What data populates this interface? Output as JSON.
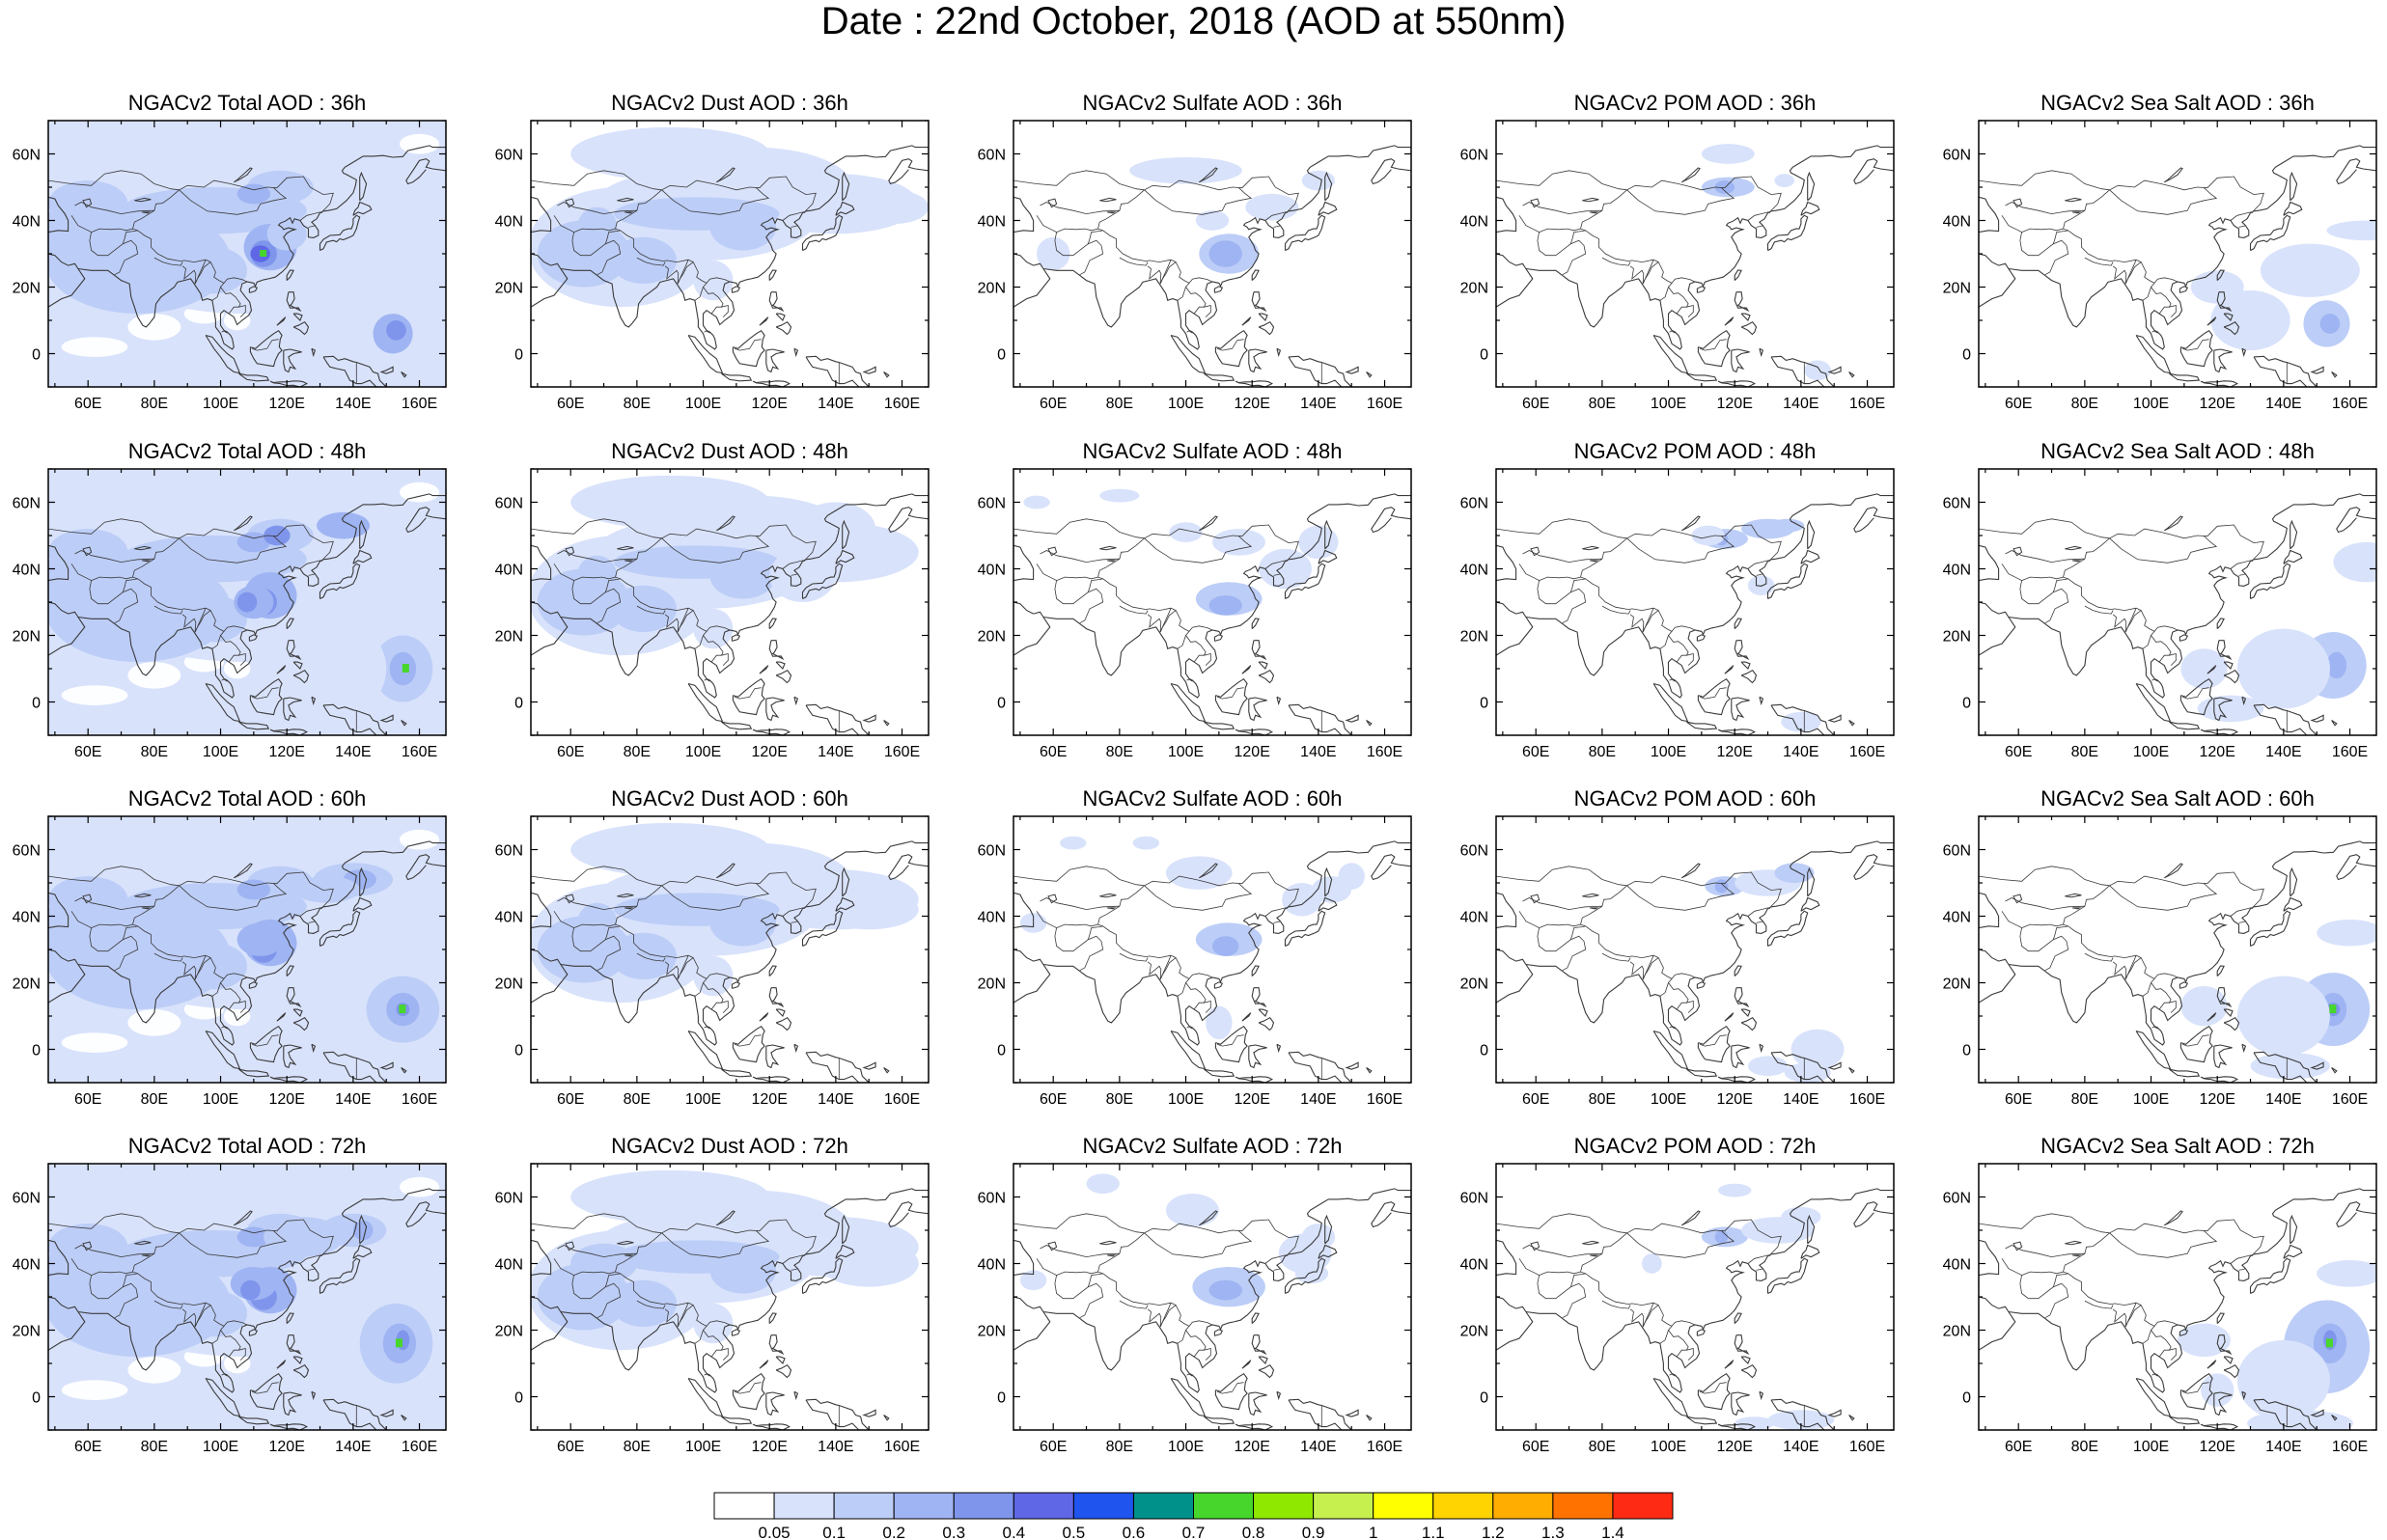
{
  "title": "Date : 22nd October, 2018 (AOD at 550nm)",
  "colors": {
    "land_outline": "#3a3a3a",
    "frame": "#000000",
    "colorbar": [
      "#ffffff",
      "#d8e2fb",
      "#bccdf7",
      "#9fb4f2",
      "#7f95ec",
      "#6067e6",
      "#1f55ee",
      "#00918a",
      "#47d62c",
      "#8fe800",
      "#c6f04e",
      "#ffff00",
      "#ffd400",
      "#ffad00",
      "#ff7200",
      "#ff2a13"
    ]
  },
  "panels": [
    [
      "NGACv2 Total AOD : 36h",
      "NGACv2 Dust AOD : 36h",
      "NGACv2 Sulfate AOD : 36h",
      "NGACv2 POM AOD : 36h",
      "NGACv2 Sea Salt AOD : 36h"
    ],
    [
      "NGACv2 Total AOD : 48h",
      "NGACv2 Dust AOD : 48h",
      "NGACv2 Sulfate AOD : 48h",
      "NGACv2 POM AOD : 48h",
      "NGACv2 Sea Salt AOD : 48h"
    ],
    [
      "NGACv2 Total AOD : 60h",
      "NGACv2 Dust AOD : 60h",
      "NGACv2 Sulfate AOD : 60h",
      "NGACv2 POM AOD : 60h",
      "NGACv2 Sea Salt AOD : 60h"
    ],
    [
      "NGACv2 Total AOD : 72h",
      "NGACv2 Dust AOD : 72h",
      "NGACv2 Sulfate AOD : 72h",
      "NGACv2 POM AOD : 72h",
      "NGACv2 Sea Salt  AOD : 72h"
    ]
  ],
  "species": [
    "total",
    "dust",
    "sulfate",
    "pom",
    "seasalt"
  ],
  "hours": [
    "36h",
    "48h",
    "60h",
    "72h"
  ],
  "map": {
    "lon_range": [
      48,
      168
    ],
    "lat_range": [
      -10,
      70
    ],
    "lon_ticks": [
      "60E",
      "80E",
      "100E",
      "120E",
      "140E",
      "160E"
    ],
    "lat_ticks": [
      "60N",
      "40N",
      "20N",
      "0"
    ]
  },
  "colorbar_labels": [
    "0.05",
    "0.1",
    "0.2",
    "0.3",
    "0.4",
    "0.5",
    "0.6",
    "0.7",
    "0.8",
    "0.9",
    "1",
    "1.1",
    "1.2",
    "1.3",
    "1.4"
  ]
}
